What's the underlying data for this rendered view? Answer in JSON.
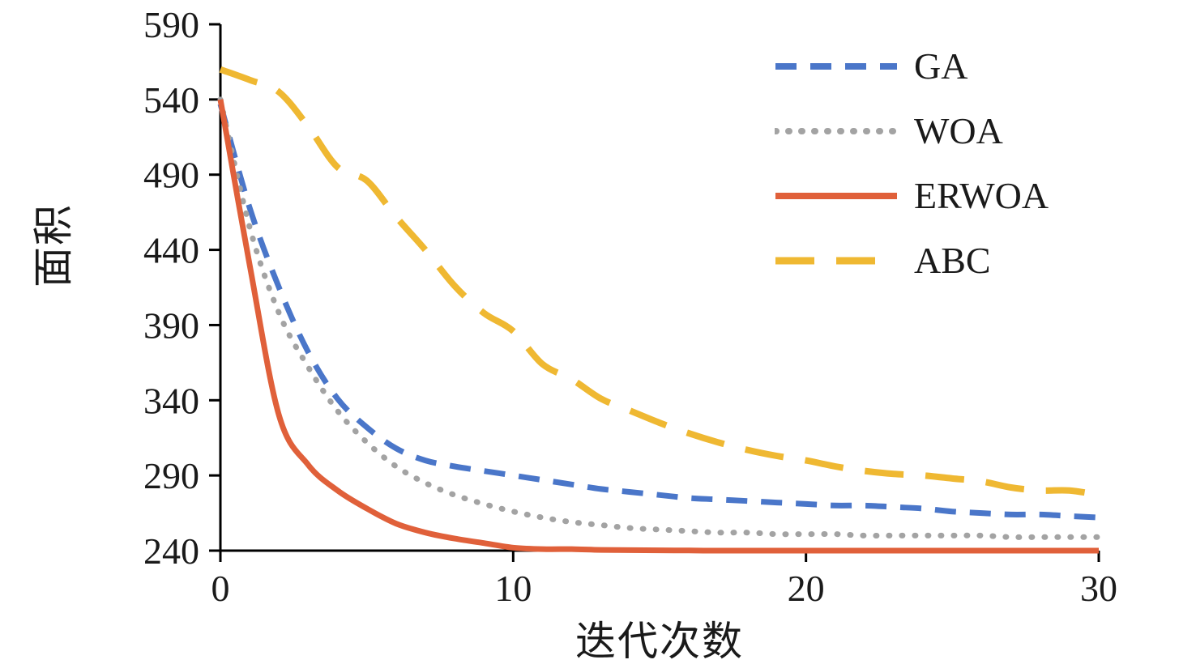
{
  "chart_data": {
    "type": "line",
    "title": "",
    "xlabel": "迭代次数",
    "ylabel": "面积",
    "xlim": [
      0,
      30
    ],
    "ylim": [
      240,
      590
    ],
    "x_ticks": [
      0,
      10,
      20,
      30
    ],
    "y_ticks": [
      240,
      290,
      340,
      390,
      440,
      490,
      540,
      590
    ],
    "grid": false,
    "legend_position": "top-right",
    "x": [
      0,
      1,
      2,
      3,
      4,
      5,
      6,
      7,
      8,
      9,
      10,
      11,
      12,
      13,
      14,
      15,
      16,
      17,
      18,
      19,
      20,
      21,
      22,
      23,
      24,
      25,
      26,
      27,
      28,
      29,
      30
    ],
    "series": [
      {
        "name": "GA",
        "color": "#4a76c9",
        "line_style": "dashed",
        "dash": "26 17",
        "width": 7,
        "values": [
          537,
          468,
          415,
          372,
          341,
          322,
          308,
          300,
          296,
          293,
          290,
          287,
          284,
          281,
          279,
          277,
          275,
          274,
          273,
          272,
          271,
          270,
          270,
          269,
          268,
          266,
          265,
          264,
          264,
          263,
          262
        ]
      },
      {
        "name": "WOA",
        "color": "#a3a3a3",
        "line_style": "dotted",
        "dash": "1 15",
        "width": 7,
        "values": [
          540,
          455,
          398,
          362,
          333,
          312,
          296,
          285,
          277,
          271,
          266,
          262,
          259,
          257,
          255,
          254,
          253,
          252,
          252,
          251,
          251,
          251,
          250,
          250,
          250,
          250,
          250,
          249,
          249,
          249,
          249
        ]
      },
      {
        "name": "ERWOA",
        "color": "#e0603a",
        "line_style": "solid",
        "dash": "",
        "width": 7,
        "values": [
          540,
          430,
          330,
          297,
          280,
          268,
          258,
          252,
          248,
          245,
          242,
          241,
          241,
          240.5,
          240.3,
          240.2,
          240.1,
          240,
          240,
          240,
          240,
          240,
          240,
          240,
          240,
          240,
          240,
          240,
          240,
          240,
          240
        ]
      },
      {
        "name": "ABC",
        "color": "#efb832",
        "line_style": "long-dash",
        "dash": "48 27",
        "width": 8,
        "values": [
          560,
          553,
          545,
          522,
          495,
          486,
          462,
          440,
          416,
          398,
          386,
          364,
          354,
          341,
          333,
          325,
          318,
          312,
          307,
          303,
          300,
          296,
          293,
          291,
          290,
          288,
          286,
          282,
          280,
          280,
          277
        ]
      }
    ]
  }
}
